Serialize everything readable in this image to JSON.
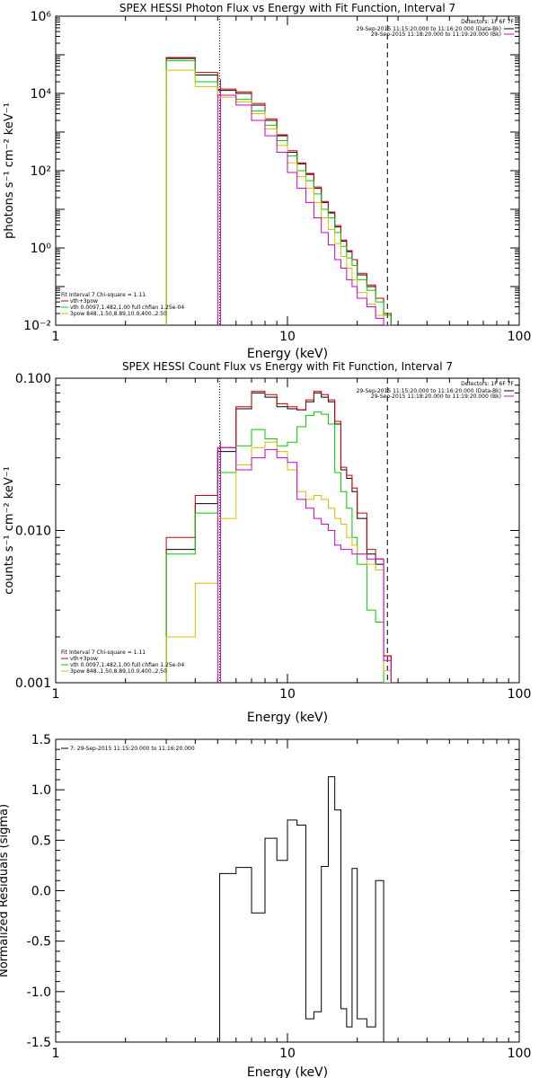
{
  "chart_data": [
    {
      "type": "line",
      "title": "SPEX HESSI Photon Flux vs Energy with Fit Function, Interval 7",
      "xlabel": "Energy (keV)",
      "ylabel": "photons s⁻¹ cm⁻² keV⁻¹",
      "xscale": "log",
      "yscale": "log",
      "xlim": [
        1,
        100
      ],
      "ylim": [
        0.01,
        1000000
      ],
      "xticks": [
        {
          "v": 1,
          "label": "1"
        },
        {
          "v": 10,
          "label": "10"
        },
        {
          "v": 100,
          "label": "100"
        }
      ],
      "yticks": [
        {
          "v": 0.01,
          "label": "10⁻²"
        },
        {
          "v": 1,
          "label": "10⁰"
        },
        {
          "v": 100,
          "label": "10²"
        },
        {
          "v": 10000,
          "label": "10⁴"
        },
        {
          "v": 1000000,
          "label": "10⁶"
        }
      ],
      "vlines": [
        {
          "x": 5.1,
          "style": "dotted"
        },
        {
          "x": 27,
          "style": "dashed"
        }
      ],
      "magenta_vline": 5.1,
      "edges": [
        3,
        4,
        5,
        6,
        7,
        8,
        9,
        10,
        11,
        12,
        13,
        14,
        15,
        16,
        17,
        18,
        19,
        20,
        22,
        24,
        26,
        28
      ],
      "series": [
        {
          "name": "Data",
          "color": "#000000",
          "values": [
            80000,
            30000,
            12000,
            10000,
            5000,
            2000,
            800,
            300,
            150,
            80,
            35,
            15,
            8,
            3.5,
            1.5,
            0.8,
            0.5,
            0.2,
            0.1,
            0.05,
            0.02
          ]
        },
        {
          "name": "vth+3pow",
          "color": "#cc0000",
          "values": [
            85000,
            35000,
            13000,
            11000,
            5500,
            2200,
            850,
            330,
            160,
            85,
            38,
            16,
            8.5,
            3.8,
            1.6,
            0.85,
            0.5,
            0.22,
            0.11,
            0.05,
            0.02
          ]
        },
        {
          "name": "vth",
          "color": "#00cc00",
          "values": [
            70000,
            20000,
            9000,
            7000,
            3500,
            1500,
            600,
            240,
            100,
            55,
            25,
            10,
            6,
            2.5,
            1.1,
            0.55,
            0.35,
            0.15,
            0.08,
            0.04,
            0.018
          ]
        },
        {
          "name": "3pow",
          "color": "#ddbb00",
          "values": [
            40000,
            15000,
            8000,
            6000,
            3000,
            1200,
            450,
            160,
            70,
            35,
            15,
            6,
            3,
            1.3,
            0.6,
            0.3,
            0.15,
            0.07,
            0.035,
            0.018,
            0.01
          ]
        },
        {
          "name": "Background",
          "color": "#cc00cc",
          "values": [
            null,
            null,
            9000,
            5000,
            2000,
            800,
            300,
            90,
            35,
            15,
            6,
            2.5,
            1.2,
            0.5,
            0.3,
            0.15,
            0.1,
            0.05,
            0.03,
            0.015,
            0.01
          ]
        }
      ],
      "legend": {
        "lines": [
          {
            "text": "Fit Interval  7    Chi-square = 1.11",
            "color": "#000000",
            "swatch": false
          },
          {
            "text": "vth+3pow",
            "color": "#cc0000",
            "swatch": true
          },
          {
            "text": "vth 0.0097,1.482,1.00  full chfian 1.25e-04",
            "color": "#00cc00",
            "swatch": true
          },
          {
            "text": "3pow 848.,1.50,8.89,10.0,400.,2.50",
            "color": "#ddbb00",
            "swatch": true
          }
        ]
      },
      "detectors": {
        "title": "Detectors: 1F 6F 7F",
        "lines": [
          {
            "text": "29-Sep-2015 11:15:20.000 to 11:16:20.000 (Data-Bk)",
            "color": "#000000"
          },
          {
            "text": "29-Sep-2015 11:18:20.000 to 11:19:20.000 (Bk)",
            "color": "#cc00cc"
          }
        ]
      }
    },
    {
      "type": "line",
      "title": "SPEX HESSI Count Flux vs Energy with Fit Function, Interval 7",
      "xlabel": "Energy (keV)",
      "ylabel": "counts s⁻¹ cm⁻² keV⁻¹",
      "xscale": "log",
      "yscale": "log",
      "xlim": [
        1,
        100
      ],
      "ylim": [
        0.001,
        0.1
      ],
      "xticks": [
        {
          "v": 1,
          "label": "1"
        },
        {
          "v": 10,
          "label": "10"
        },
        {
          "v": 100,
          "label": "100"
        }
      ],
      "yticks": [
        {
          "v": 0.001,
          "label": "0.001"
        },
        {
          "v": 0.01,
          "label": "0.010"
        },
        {
          "v": 0.1,
          "label": "0.100"
        }
      ],
      "vlines": [
        {
          "x": 5.1,
          "style": "dotted"
        },
        {
          "x": 27,
          "style": "dashed"
        }
      ],
      "magenta_vline": 5.1,
      "edges": [
        3,
        4,
        5,
        6,
        7,
        8,
        9,
        10,
        11,
        12,
        13,
        14,
        15,
        16,
        17,
        18,
        19,
        20,
        22,
        24,
        26,
        28
      ],
      "series": [
        {
          "name": "Data",
          "color": "#000000",
          "values": [
            0.0075,
            0.015,
            0.033,
            0.063,
            0.08,
            0.075,
            0.065,
            0.063,
            0.062,
            0.07,
            0.08,
            0.075,
            0.07,
            0.05,
            0.025,
            0.022,
            0.018,
            0.012,
            0.007,
            0.006,
            0.0015
          ]
        },
        {
          "name": "vth+3pow",
          "color": "#cc0000",
          "values": [
            0.009,
            0.017,
            0.035,
            0.065,
            0.082,
            0.078,
            0.068,
            0.065,
            0.062,
            0.072,
            0.082,
            0.078,
            0.072,
            0.052,
            0.026,
            0.023,
            0.019,
            0.013,
            0.0075,
            0.0065,
            0.0015
          ]
        },
        {
          "name": "vth",
          "color": "#00cc00",
          "values": [
            0.007,
            0.013,
            0.024,
            0.036,
            0.046,
            0.04,
            0.036,
            0.038,
            0.048,
            0.057,
            0.06,
            0.058,
            0.05,
            0.024,
            0.018,
            0.014,
            0.009,
            0.006,
            0.003,
            0.0025,
            0.001
          ]
        },
        {
          "name": "3pow",
          "color": "#ddbb00",
          "values": [
            0.002,
            0.0045,
            0.012,
            0.027,
            0.035,
            0.038,
            0.033,
            0.025,
            0.018,
            0.016,
            0.017,
            0.016,
            0.014,
            0.012,
            0.011,
            0.009,
            0.008,
            0.007,
            0.006,
            0.0055,
            0.0012
          ]
        },
        {
          "name": "Background",
          "color": "#cc00cc",
          "values": [
            null,
            null,
            0.035,
            0.025,
            0.03,
            0.034,
            0.03,
            0.028,
            0.016,
            0.014,
            0.012,
            0.011,
            0.01,
            0.008,
            0.0075,
            0.0075,
            0.007,
            0.007,
            0.0065,
            0.0065,
            0.0014
          ]
        }
      ],
      "legend": {
        "lines": [
          {
            "text": "Fit Interval  7    Chi-square = 1.11",
            "color": "#000000",
            "swatch": false
          },
          {
            "text": "vth+3pow",
            "color": "#cc0000",
            "swatch": true
          },
          {
            "text": "vth 0.0097,1.482,1.00  full chfian 1.25e-04",
            "color": "#00cc00",
            "swatch": true
          },
          {
            "text": "3pow 848.,1.50,8.89,10.0,400.,2.50",
            "color": "#ddbb00",
            "swatch": true
          }
        ]
      },
      "detectors": {
        "title": "Detectors: 1F 6F 7F",
        "lines": [
          {
            "text": "29-Sep-2015 11:15:20.000 to 11:16:20.000 (Data-Bk)",
            "color": "#000000"
          },
          {
            "text": "29-Sep-2015 11:18:20.000 to 11:19:20.000 (Bk)",
            "color": "#cc00cc"
          }
        ]
      }
    },
    {
      "type": "line",
      "title": "",
      "xlabel": "Energy (keV)",
      "ylabel": "Normalized Residuals (sigma)",
      "xscale": "log",
      "yscale": "linear",
      "xlim": [
        1,
        100
      ],
      "ylim": [
        -1.5,
        1.5
      ],
      "xticks": [
        {
          "v": 1,
          "label": "1"
        },
        {
          "v": 10,
          "label": "10"
        },
        {
          "v": 100,
          "label": "100"
        }
      ],
      "yticks": [
        {
          "v": -1.5,
          "label": "-1.5"
        },
        {
          "v": -1.0,
          "label": "-1.0"
        },
        {
          "v": -0.5,
          "label": "-0.5"
        },
        {
          "v": 0.0,
          "label": "0.0"
        },
        {
          "v": 0.5,
          "label": "0.5"
        },
        {
          "v": 1.0,
          "label": "1.0"
        },
        {
          "v": 1.5,
          "label": "1.5"
        }
      ],
      "edges": [
        5.1,
        6,
        7,
        8,
        9,
        10,
        11,
        12,
        13,
        14,
        15,
        16,
        17,
        18,
        19,
        20,
        22,
        24,
        26,
        27
      ],
      "start_from": -1.5,
      "end_to": -1.5,
      "series": [
        {
          "name": "7: 29-Sep-2015 11:15:20.000 to 11:16:20.000",
          "color": "#000000",
          "values": [
            0.17,
            0.23,
            -0.22,
            0.52,
            0.3,
            0.7,
            0.65,
            -1.27,
            -1.2,
            0.24,
            1.13,
            0.8,
            -1.17,
            -1.35,
            0.22,
            -1.27,
            -1.35,
            0.1,
            -1.5
          ]
        }
      ],
      "legend": {
        "lines": [
          {
            "text": "7: 29-Sep-2015 11:15:20.000 to 11:16:20.000",
            "color": "#000000",
            "swatch": true
          }
        ]
      }
    }
  ]
}
